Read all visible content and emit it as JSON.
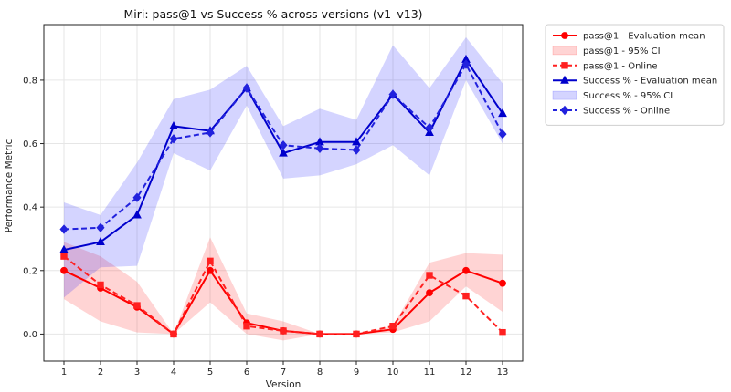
{
  "chart_data": {
    "type": "line",
    "title": "Miri: pass@1 vs Success % across versions (v1–v13)",
    "xlabel": "Version",
    "ylabel": "Performance Metric",
    "xlim": [
      0.45,
      13.55
    ],
    "ylim": [
      -0.085,
      0.975
    ],
    "x": [
      1,
      2,
      3,
      4,
      5,
      6,
      7,
      8,
      9,
      10,
      11,
      12,
      13
    ],
    "xticks": [
      "1",
      "2",
      "3",
      "4",
      "5",
      "6",
      "7",
      "8",
      "9",
      "10",
      "11",
      "12",
      "13"
    ],
    "yticks": [
      0.0,
      0.2,
      0.4,
      0.6,
      0.8
    ],
    "ytick_labels": [
      "0.0",
      "0.2",
      "0.4",
      "0.6",
      "0.8"
    ],
    "grid": true,
    "legend_position": "outside-right-top",
    "series": [
      {
        "name": "pass@1 - Evaluation mean",
        "kind": "line",
        "marker": "circle",
        "linestyle": "solid",
        "color": "#ff0000",
        "values": [
          0.2,
          0.145,
          0.085,
          0.0,
          0.2,
          0.035,
          0.01,
          0.0,
          0.0,
          0.015,
          0.13,
          0.2,
          0.16
        ]
      },
      {
        "name": "pass@1 - 95% CI",
        "kind": "band",
        "color": "#ff0000",
        "lower": [
          0.11,
          0.04,
          0.005,
          0.0,
          0.1,
          0.0,
          -0.02,
          0.0,
          0.0,
          0.005,
          0.04,
          0.15,
          0.07
        ],
        "upper": [
          0.29,
          0.245,
          0.165,
          0.0,
          0.305,
          0.065,
          0.04,
          0.0,
          0.0,
          0.025,
          0.225,
          0.255,
          0.25
        ]
      },
      {
        "name": "pass@1 - Online",
        "kind": "line",
        "marker": "square",
        "linestyle": "dashed",
        "color": "#ff2020",
        "values": [
          0.245,
          0.155,
          0.09,
          0.0,
          0.23,
          0.025,
          0.01,
          0.0,
          0.0,
          0.025,
          0.185,
          0.12,
          0.005
        ]
      },
      {
        "name": "Success % - Evaluation mean",
        "kind": "line",
        "marker": "triangle",
        "linestyle": "solid",
        "color": "#0000cc",
        "values": [
          0.265,
          0.29,
          0.375,
          0.655,
          0.64,
          0.775,
          0.57,
          0.605,
          0.605,
          0.755,
          0.635,
          0.865,
          0.695
        ]
      },
      {
        "name": "Success % - 95% CI",
        "kind": "band",
        "color": "#0000ff",
        "lower": [
          0.115,
          0.21,
          0.215,
          0.57,
          0.515,
          0.72,
          0.49,
          0.5,
          0.535,
          0.595,
          0.5,
          0.8,
          0.6
        ],
        "upper": [
          0.415,
          0.375,
          0.54,
          0.74,
          0.77,
          0.845,
          0.655,
          0.71,
          0.675,
          0.91,
          0.775,
          0.935,
          0.79
        ]
      },
      {
        "name": "Success % - Online",
        "kind": "line",
        "marker": "diamond",
        "linestyle": "dashed",
        "color": "#2222dd",
        "values": [
          0.33,
          0.335,
          0.43,
          0.615,
          0.635,
          0.775,
          0.595,
          0.585,
          0.58,
          0.755,
          0.65,
          0.85,
          0.63
        ]
      }
    ]
  }
}
